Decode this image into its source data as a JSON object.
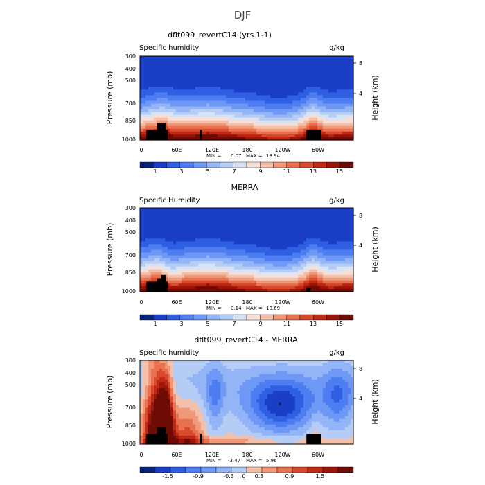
{
  "figure_title": "DJF",
  "chart_data": [
    {
      "type": "heatmap",
      "title": "dflt099_revertC14 (yrs 1-1)",
      "left_label": "Specific humidity",
      "units": "g/kg",
      "ylabel": "Pressure (mb)",
      "ylabel_right": "Height (km)",
      "y_ticks": [
        "300",
        "400",
        "500",
        "700",
        "850",
        "1000"
      ],
      "y_right_ticks": [
        "8",
        "4"
      ],
      "x_ticks": [
        "0",
        "60E",
        "120E",
        "180",
        "120W",
        "60W"
      ],
      "stats": {
        "min_label": "MIN =",
        "min": "0.07",
        "max_label": "MAX =",
        "max": "18.94"
      },
      "colorbar_labels": [
        "1",
        "3",
        "5",
        "7",
        "9",
        "11",
        "13",
        "15"
      ],
      "kind": "abs",
      "colors": [
        "#08237a",
        "#1a3ec6",
        "#2f5fe2",
        "#4d7df0",
        "#6e98f5",
        "#93b4f7",
        "#b5ccf5",
        "#d8e3f5",
        "#f6dfd6",
        "#f5c0aa",
        "#f09878",
        "#e8714f",
        "#d94a2c",
        "#c02a14",
        "#9a150a",
        "#6e0b05"
      ]
    },
    {
      "type": "heatmap",
      "title": "MERRA",
      "left_label": "Specific Humidity",
      "units": "g/kg",
      "ylabel": "Pressure (mb)",
      "ylabel_right": "Height (km)",
      "y_ticks": [
        "300",
        "400",
        "500",
        "700",
        "850",
        "1000"
      ],
      "y_right_ticks": [
        "8",
        "4"
      ],
      "x_ticks": [
        "0",
        "60E",
        "120E",
        "180",
        "120W",
        "60W"
      ],
      "stats": {
        "min_label": "MIN =",
        "min": "0.14",
        "max_label": "MAX =",
        "max": "18.69"
      },
      "colorbar_labels": [
        "1",
        "3",
        "5",
        "7",
        "9",
        "11",
        "13",
        "15"
      ],
      "kind": "abs",
      "colors": [
        "#08237a",
        "#1a3ec6",
        "#2f5fe2",
        "#4d7df0",
        "#6e98f5",
        "#93b4f7",
        "#b5ccf5",
        "#d8e3f5",
        "#f6dfd6",
        "#f5c0aa",
        "#f09878",
        "#e8714f",
        "#d94a2c",
        "#c02a14",
        "#9a150a",
        "#6e0b05"
      ]
    },
    {
      "type": "heatmap",
      "title": "dflt099_revertC14 - MERRA",
      "left_label": "Specific humidity",
      "units": "g/kg",
      "ylabel": "Pressure (mb)",
      "ylabel_right": "Height (km)",
      "y_ticks": [
        "300",
        "400",
        "500",
        "700",
        "850",
        "1000"
      ],
      "y_right_ticks": [
        "8",
        "4"
      ],
      "x_ticks": [
        "0",
        "60E",
        "120E",
        "180",
        "120W",
        "60W"
      ],
      "stats": {
        "min_label": "MIN =",
        "min": "-3.47",
        "max_label": "MAX =",
        "max": "5.96"
      },
      "colorbar_labels": [
        "-1.5",
        "-0.9",
        "-0.3",
        "0",
        "0.3",
        "0.9",
        "1.5"
      ],
      "kind": "diff",
      "colors": [
        "#08237a",
        "#1a3ec6",
        "#2f5fe2",
        "#4d7df0",
        "#6e98f5",
        "#93b4f7",
        "#b5ccf5",
        "#f5c0aa",
        "#f09878",
        "#e8714f",
        "#d94a2c",
        "#c02a14",
        "#9a150a",
        "#6e0b05"
      ]
    }
  ]
}
